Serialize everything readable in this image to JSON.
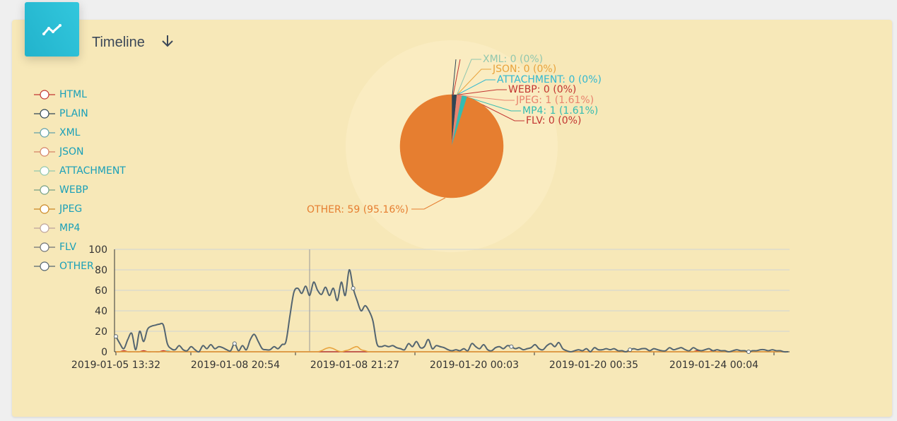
{
  "header": {
    "title": "Timeline",
    "title_icon": "trend-line-icon",
    "sort_icon": "arrow-down-icon"
  },
  "legend": [
    {
      "name": "HTML",
      "color": "#c23531"
    },
    {
      "name": "PLAIN",
      "color": "#2f4554"
    },
    {
      "name": "XML",
      "color": "#61a0a8"
    },
    {
      "name": "JSON",
      "color": "#d48265"
    },
    {
      "name": "ATTACHMENT",
      "color": "#91c7ae"
    },
    {
      "name": "WEBP",
      "color": "#749f83"
    },
    {
      "name": "JPEG",
      "color": "#ca8622"
    },
    {
      "name": "MP4",
      "color": "#bda29a"
    },
    {
      "name": "FLV",
      "color": "#6e7074"
    },
    {
      "name": "OTHER",
      "color": "#546570"
    }
  ],
  "chart_data": [
    {
      "type": "pie",
      "slices": [
        {
          "name": "HTML",
          "value": 0,
          "label": "",
          "color": "#c23531"
        },
        {
          "name": "PLAIN",
          "value": 1,
          "label": "",
          "color": "#2f4554"
        },
        {
          "name": "XML",
          "value": 0,
          "label": "XML: 0 (0%)",
          "color": "#91c7ae"
        },
        {
          "name": "JSON",
          "value": 0,
          "label": "JSON: 0 (0%)",
          "color": "#e8a33c"
        },
        {
          "name": "ATTACHMENT",
          "value": 0,
          "label": "ATTACHMENT: 0 (0%)",
          "color": "#32b8d0"
        },
        {
          "name": "WEBP",
          "value": 0,
          "label": "WEBP: 0 (0%)",
          "color": "#c23531"
        },
        {
          "name": "JPEG",
          "value": 1,
          "label": "JPEG: 1 (1.61%)",
          "color": "#e8836e"
        },
        {
          "name": "MP4",
          "value": 1,
          "label": "MP4: 1 (1.61%)",
          "color": "#35bcb1"
        },
        {
          "name": "FLV",
          "value": 0,
          "label": "FLV: 0 (0%)",
          "color": "#c23531"
        },
        {
          "name": "OTHER",
          "value": 59,
          "label": "OTHER: 59 (95.16%)",
          "color": "#e67e30"
        }
      ]
    },
    {
      "type": "line",
      "ylim": [
        0,
        100
      ],
      "yticks": [
        0,
        20,
        40,
        60,
        80,
        100
      ],
      "grid": true,
      "xtick_labels": [
        "2019-01-05 13:32",
        "2019-01-08 20:54",
        "2019-01-08 21:27",
        "2019-01-20 00:03",
        "2019-01-20 00:35",
        "2019-01-24 00:04"
      ],
      "series": [
        {
          "name": "OTHER",
          "color": "#546570",
          "values": [
            15,
            8,
            3,
            12,
            18,
            2,
            20,
            10,
            22,
            25,
            26,
            27,
            26,
            8,
            3,
            2,
            6,
            2,
            1,
            5,
            2,
            0,
            6,
            3,
            7,
            3,
            5,
            4,
            2,
            1,
            8,
            1,
            6,
            2,
            12,
            17,
            10,
            3,
            2,
            2,
            5,
            3,
            7,
            10,
            35,
            58,
            62,
            57,
            64,
            55,
            68,
            60,
            56,
            63,
            55,
            62,
            50,
            68,
            55,
            80,
            62,
            50,
            40,
            45,
            40,
            30,
            8,
            5,
            6,
            5,
            6,
            4,
            3,
            2,
            8,
            5,
            10,
            4,
            5,
            12,
            3,
            6,
            5,
            4,
            2,
            1,
            2,
            1,
            3,
            1,
            8,
            5,
            3,
            7,
            2,
            1,
            4,
            5,
            3,
            6,
            5,
            3,
            4,
            2,
            3,
            4,
            7,
            3,
            2,
            6,
            8,
            5,
            9,
            3,
            1,
            0,
            1,
            2,
            1,
            3,
            0,
            4,
            2,
            2,
            3,
            2,
            3,
            1,
            1,
            0,
            2,
            3,
            2,
            3,
            3,
            1,
            3,
            2,
            1,
            1,
            4,
            2,
            3,
            4,
            2,
            1,
            4,
            2,
            1,
            2,
            3,
            1,
            2,
            1,
            1,
            0,
            1,
            2,
            1,
            1,
            0,
            1,
            1,
            2,
            2,
            1,
            2,
            1,
            1,
            0,
            0
          ]
        },
        {
          "name": "JPEG",
          "color": "#e8a33c",
          "values": [
            0,
            0,
            0,
            0,
            0,
            0,
            0,
            0,
            0,
            0,
            0,
            0,
            0,
            0,
            0,
            0,
            0,
            0,
            0,
            0,
            0,
            0,
            0,
            0,
            0,
            0,
            0,
            0,
            0,
            0,
            0,
            0,
            0,
            0,
            0,
            0,
            0,
            0,
            0,
            0,
            0,
            0,
            0,
            0,
            0,
            0,
            0,
            0,
            0,
            0,
            0,
            0,
            1,
            3,
            4,
            3,
            1,
            0,
            1,
            2,
            4,
            5,
            2,
            1,
            0,
            0,
            0,
            0,
            0,
            0,
            0,
            0,
            0,
            0,
            0,
            0,
            0,
            0,
            0,
            0,
            0,
            0,
            0,
            0,
            0,
            0,
            0,
            0,
            0,
            0,
            0,
            0,
            0,
            0,
            0,
            0,
            0,
            0,
            0,
            0,
            0,
            0,
            0,
            0,
            0,
            0,
            0,
            0,
            0,
            0,
            0,
            0,
            0,
            0,
            0,
            0,
            0,
            0,
            0,
            0,
            0,
            0,
            0,
            0,
            0,
            0,
            0,
            0,
            0,
            0,
            0,
            0,
            0,
            0,
            0,
            0,
            0,
            0,
            0,
            0,
            0,
            0,
            0,
            0,
            0,
            0,
            0,
            0,
            0,
            0,
            0,
            0,
            0,
            0,
            0,
            0,
            0,
            0,
            0,
            0,
            0,
            0,
            0,
            0,
            0,
            0,
            0,
            0,
            0,
            0,
            0
          ]
        },
        {
          "name": "HTML",
          "color": "#c23531",
          "values": [
            0,
            0,
            1,
            0,
            0,
            0,
            0,
            1,
            0,
            0,
            0,
            0,
            1,
            0,
            0,
            0,
            0,
            0,
            0,
            0,
            0,
            0,
            0,
            0,
            0,
            0,
            0,
            0,
            0,
            0,
            0,
            0,
            0,
            0,
            0,
            0,
            0,
            0,
            0,
            0,
            0,
            0,
            0,
            0,
            0,
            0,
            0,
            0,
            0,
            0,
            0,
            0,
            0,
            0,
            0,
            0,
            0,
            0,
            0,
            0,
            0,
            0,
            0,
            0,
            0,
            0,
            0,
            0,
            0,
            0,
            0,
            0,
            0,
            0,
            0,
            0,
            0,
            0,
            0,
            0,
            0,
            0,
            0,
            0,
            0,
            0,
            0,
            0,
            0,
            0,
            0,
            0,
            0,
            0,
            0,
            0,
            0,
            0,
            0,
            0,
            0,
            0,
            0,
            0,
            0,
            0,
            0,
            0,
            0,
            0,
            0,
            0,
            0,
            0,
            0,
            0,
            0,
            0,
            0,
            0,
            0,
            0,
            0,
            0,
            0,
            0,
            0,
            0,
            0,
            0,
            0,
            0,
            0,
            0,
            0,
            0,
            0,
            0,
            0,
            0,
            0,
            0,
            0,
            0,
            0,
            0,
            0,
            1,
            0,
            0,
            0,
            1,
            0,
            0,
            0,
            0,
            0,
            0,
            0,
            0,
            0,
            0,
            0,
            0,
            0,
            0,
            0,
            0,
            0,
            0,
            0
          ]
        },
        {
          "name": "MP4",
          "color": "#91c7ae",
          "values": [
            0,
            0,
            0,
            0,
            0,
            0,
            0,
            0,
            0,
            0,
            0,
            0,
            0,
            1,
            0,
            0,
            0,
            0,
            0,
            0,
            0,
            0,
            0,
            0,
            0,
            0,
            0,
            0,
            0,
            0,
            0,
            0,
            0,
            0,
            0,
            0,
            0,
            0,
            0,
            0,
            0,
            0,
            0,
            0,
            0,
            0,
            0,
            0,
            0,
            0,
            0,
            0,
            0,
            0,
            0,
            0,
            0,
            0,
            0,
            0,
            0,
            0,
            0,
            0,
            0,
            0,
            0,
            0,
            0,
            0,
            0,
            0,
            0,
            0,
            0,
            0,
            0,
            0,
            0,
            0,
            0,
            0,
            0,
            0,
            0,
            0,
            0,
            0,
            0,
            0,
            0,
            0,
            0,
            0,
            0,
            0,
            0,
            0,
            0,
            0,
            0,
            0,
            0,
            0,
            0,
            0,
            0,
            0,
            0,
            0,
            0,
            0,
            0,
            0,
            0,
            0,
            0,
            0,
            0,
            0,
            0,
            0,
            0,
            0,
            0,
            0,
            0,
            0,
            0,
            0,
            0,
            0,
            0,
            0,
            0,
            0,
            0,
            0,
            0,
            0,
            0,
            0,
            0,
            0,
            0,
            0,
            0,
            0,
            0,
            0,
            0,
            0,
            0,
            0,
            0,
            0,
            0,
            0,
            0,
            0,
            0,
            0,
            0,
            0,
            0,
            0,
            0,
            0,
            0,
            0,
            0
          ]
        }
      ]
    }
  ]
}
